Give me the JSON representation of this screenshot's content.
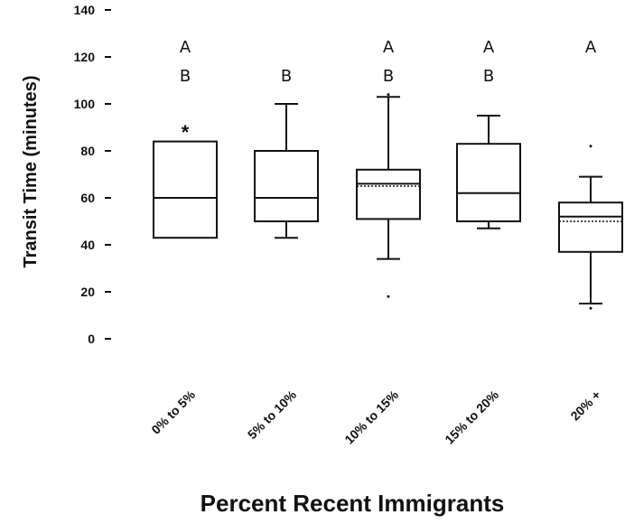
{
  "chart_data": {
    "type": "box",
    "xlabel": "Percent Recent Immigrants",
    "ylabel": "Transit Time (minutes)",
    "ylim": [
      0,
      140
    ],
    "yticks": [
      0,
      20,
      40,
      60,
      80,
      100,
      120,
      140
    ],
    "grid": false,
    "categories": [
      "0% to 5%",
      "5% to 10%",
      "10% to 15%",
      "15% to 20%",
      "20% +"
    ],
    "boxes": [
      {
        "category": "0% to 5%",
        "q1": 43,
        "median": 60,
        "q3": 84,
        "whisker_low": null,
        "whisker_high": null,
        "mean": null,
        "outliers": [],
        "groups": [
          "A",
          "B"
        ]
      },
      {
        "category": "5% to 10%",
        "q1": 50,
        "median": 60,
        "q3": 80,
        "whisker_low": 43,
        "whisker_high": 100,
        "mean": null,
        "outliers": [],
        "groups": [
          "B"
        ]
      },
      {
        "category": "10% to 15%",
        "q1": 51,
        "median": 66,
        "q3": 72,
        "whisker_low": 34,
        "whisker_high": 103,
        "mean": 65,
        "outliers": [
          18,
          104
        ],
        "groups": [
          "A",
          "B"
        ]
      },
      {
        "category": "15% to 20%",
        "q1": 50,
        "median": 62,
        "q3": 83,
        "whisker_low": 47,
        "whisker_high": 95,
        "mean": null,
        "outliers": [],
        "groups": [
          "A",
          "B"
        ]
      },
      {
        "category": "20% +",
        "q1": 37,
        "median": 52,
        "q3": 58,
        "whisker_low": 15,
        "whisker_high": 69,
        "mean": 50,
        "outliers": [
          13,
          82
        ],
        "groups": [
          "A"
        ]
      }
    ],
    "annotations": [
      {
        "category": "0% to 5%",
        "text": "*"
      }
    ]
  }
}
